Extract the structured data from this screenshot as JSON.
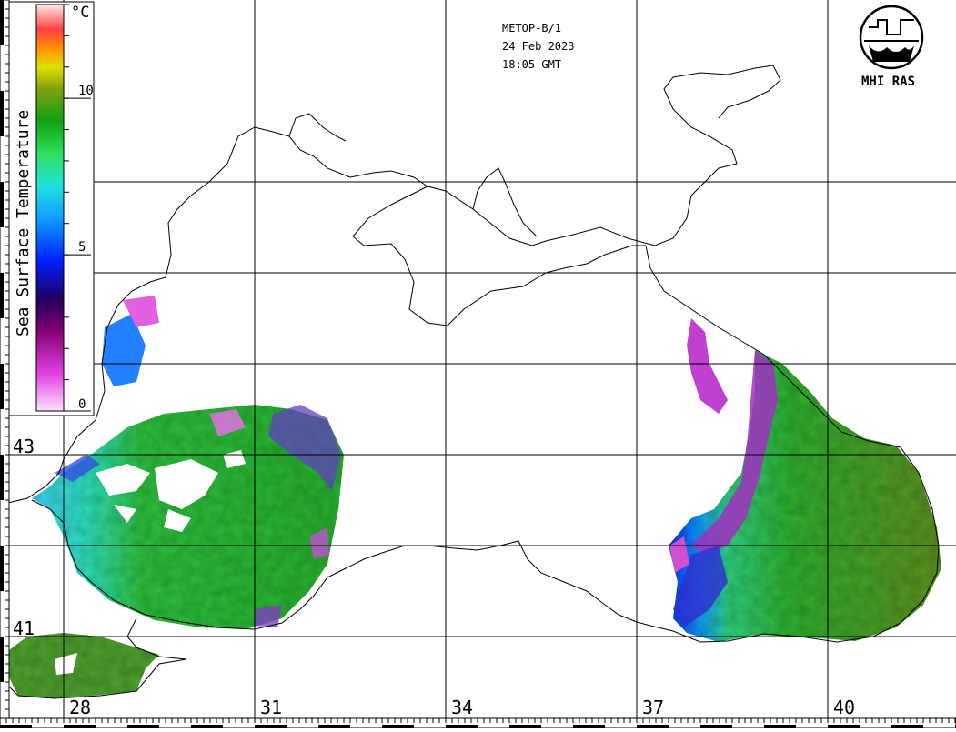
{
  "header": {
    "satellite": "METOP-B/1",
    "date": "24 Feb 2023",
    "time": "18:05 GMT"
  },
  "logo": {
    "text": "MHI RAS",
    "icon": "mhi-ras-emblem-icon"
  },
  "legend": {
    "title": "Sea Surface Temperature",
    "unit": "°C",
    "min": 0,
    "max": 13,
    "ticks": [
      {
        "value": 0,
        "label": "0"
      },
      {
        "value": 5,
        "label": "5"
      },
      {
        "value": 10,
        "label": "10"
      }
    ],
    "color_stops": [
      {
        "value": 0,
        "color": "#ffe0ff"
      },
      {
        "value": 1.2,
        "color": "#e040e0"
      },
      {
        "value": 2.6,
        "color": "#800070"
      },
      {
        "value": 3.6,
        "color": "#200060"
      },
      {
        "value": 4.8,
        "color": "#0020ff"
      },
      {
        "value": 6.2,
        "color": "#10a0ff"
      },
      {
        "value": 7.2,
        "color": "#20e0e0"
      },
      {
        "value": 8.2,
        "color": "#30e060"
      },
      {
        "value": 9.3,
        "color": "#10a010"
      },
      {
        "value": 10.3,
        "color": "#80a010"
      },
      {
        "value": 11.0,
        "color": "#e0e000"
      },
      {
        "value": 11.6,
        "color": "#ff9000"
      },
      {
        "value": 12.2,
        "color": "#ff4040"
      },
      {
        "value": 13,
        "color": "#ffe8e8"
      }
    ]
  },
  "grid": {
    "latitudes": [
      {
        "value": 41,
        "label": "41"
      },
      {
        "value": 43,
        "label": "43"
      }
    ],
    "longitudes": [
      {
        "value": 28,
        "label": "28"
      },
      {
        "value": 31,
        "label": "31"
      },
      {
        "value": 34,
        "label": "34"
      },
      {
        "value": 37,
        "label": "37"
      },
      {
        "value": 40,
        "label": "40"
      }
    ]
  },
  "colors": {
    "coast": "#000000",
    "land": "#ffffff",
    "no_data": "#ffffff"
  }
}
